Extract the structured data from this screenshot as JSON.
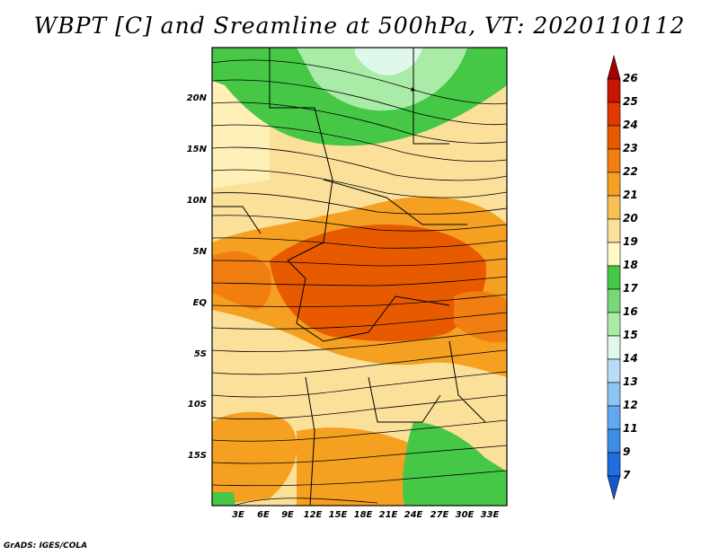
{
  "title": "WBPT [C] and Sreamline at 500hPa, VT: 2020110112",
  "map": {
    "lat_labels": [
      "20N",
      "15N",
      "10N",
      "5N",
      "EQ",
      "5S",
      "10S",
      "15S"
    ],
    "lon_labels": [
      "3E",
      "6E",
      "9E",
      "12E",
      "15E",
      "18E",
      "21E",
      "24E",
      "27E",
      "30E",
      "33E"
    ]
  },
  "colorbar": {
    "labels": [
      "26",
      "25",
      "24",
      "23",
      "22",
      "21",
      "20",
      "19",
      "18",
      "17",
      "16",
      "15",
      "14",
      "13",
      "12",
      "11",
      "9",
      "7"
    ],
    "colors": [
      "#a50000",
      "#c81400",
      "#e03a00",
      "#e85a00",
      "#f07e10",
      "#f5a020",
      "#f9c058",
      "#fbe09a",
      "#fff8c8",
      "#46c846",
      "#78d878",
      "#a8eca8",
      "#e0f8ec",
      "#b8dcf8",
      "#8ec4f4",
      "#62a8f0",
      "#3c8ce8",
      "#1e6ee0",
      "#1456d0"
    ]
  },
  "footer": "GrADS: IGES/COLA"
}
